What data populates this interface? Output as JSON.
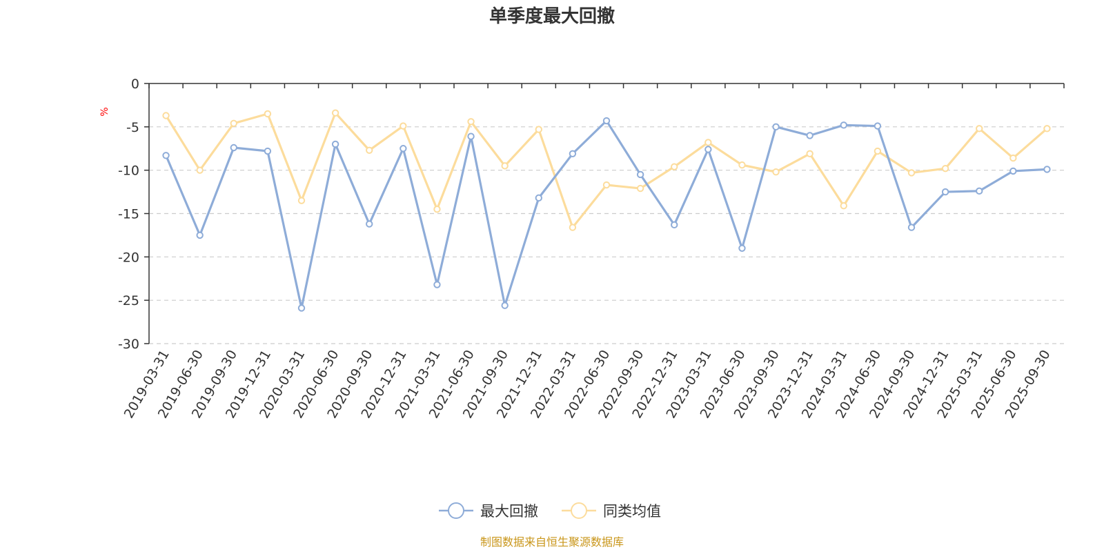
{
  "chart_data": {
    "type": "line",
    "title": "单季度最大回撤",
    "ylabel": "%",
    "xlabel": "",
    "ylim": [
      -30,
      0
    ],
    "yticks": [
      0,
      -5,
      -10,
      -15,
      -20,
      -25,
      -30
    ],
    "grid": true,
    "legend_position": "bottom",
    "categories": [
      "2019-03-31",
      "2019-06-30",
      "2019-09-30",
      "2019-12-31",
      "2020-03-31",
      "2020-06-30",
      "2020-09-30",
      "2020-12-31",
      "2021-03-31",
      "2021-06-30",
      "2021-09-30",
      "2021-12-31",
      "2022-03-31",
      "2022-06-30",
      "2022-09-30",
      "2022-12-31",
      "2023-03-31",
      "2023-06-30",
      "2023-09-30",
      "2023-12-31",
      "2024-03-31",
      "2024-06-30",
      "2024-09-30",
      "2024-12-31",
      "2025-03-31",
      "2025-06-30",
      "2025-09-30"
    ],
    "series": [
      {
        "name": "最大回撤",
        "color": "#8eacd8",
        "values": [
          -8.3,
          -17.5,
          -7.4,
          -7.8,
          -25.9,
          -7.0,
          -16.2,
          -7.5,
          -23.2,
          -6.1,
          -25.6,
          -13.2,
          -8.1,
          -4.3,
          -10.5,
          -16.3,
          -7.6,
          -19.0,
          -5.0,
          -6.0,
          -4.8,
          -4.9,
          -16.6,
          -12.5,
          -12.4,
          -10.1,
          -9.9
        ]
      },
      {
        "name": "同类均值",
        "color": "#fcdc9c",
        "values": [
          -3.7,
          -10.0,
          -4.6,
          -3.5,
          -13.5,
          -3.4,
          -7.7,
          -4.9,
          -14.5,
          -4.4,
          -9.5,
          -5.3,
          -16.6,
          -11.7,
          -12.1,
          -9.6,
          -6.8,
          -9.4,
          -10.2,
          -8.1,
          -14.1,
          -7.8,
          -10.3,
          -9.8,
          -5.2,
          -8.6,
          -5.2
        ]
      }
    ]
  },
  "footer": {
    "source": "制图数据来自恒生聚源数据库"
  }
}
